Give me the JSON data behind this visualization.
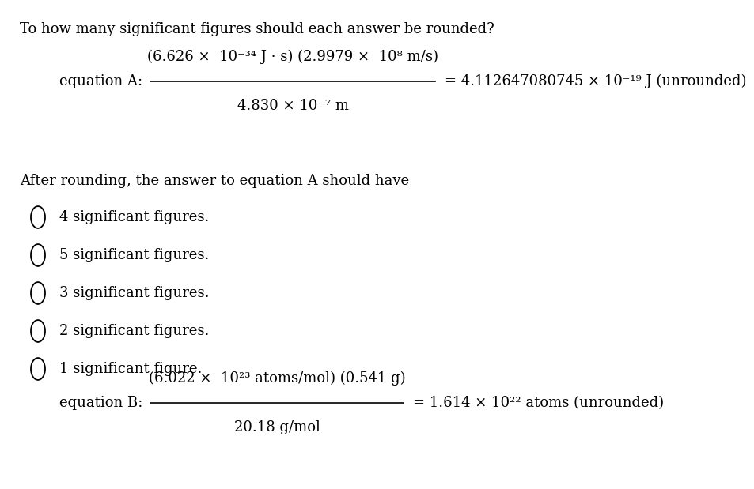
{
  "title": "To how many significant figures should each answer be rounded?",
  "bg_color": "#ffffff",
  "eq_a_label": "equation A:",
  "eq_a_numerator": "(6.626 ×  10⁻³⁴ J · s) (2.9979 ×  10⁸ m/s)",
  "eq_a_denominator": "4.830 × 10⁻⁷ m",
  "eq_a_result": "= 4.112647080745 × 10⁻¹⁹ J (unrounded)",
  "eq_b_label": "equation B:",
  "eq_b_numerator": "(6.022 ×  10²³ atoms/mol) (0.541 g)",
  "eq_b_denominator": "20.18 g/mol",
  "eq_b_result": "= 1.614 × 10²² atoms (unrounded)",
  "after_rounding_text": "After rounding, the answer to equation A should have",
  "options": [
    "4 significant figures.",
    "5 significant figures.",
    "3 significant figures.",
    "2 significant figures.",
    "1 significant figure."
  ],
  "text_color": "#000000",
  "font_family": "DejaVu Serif",
  "main_fontsize": 13
}
